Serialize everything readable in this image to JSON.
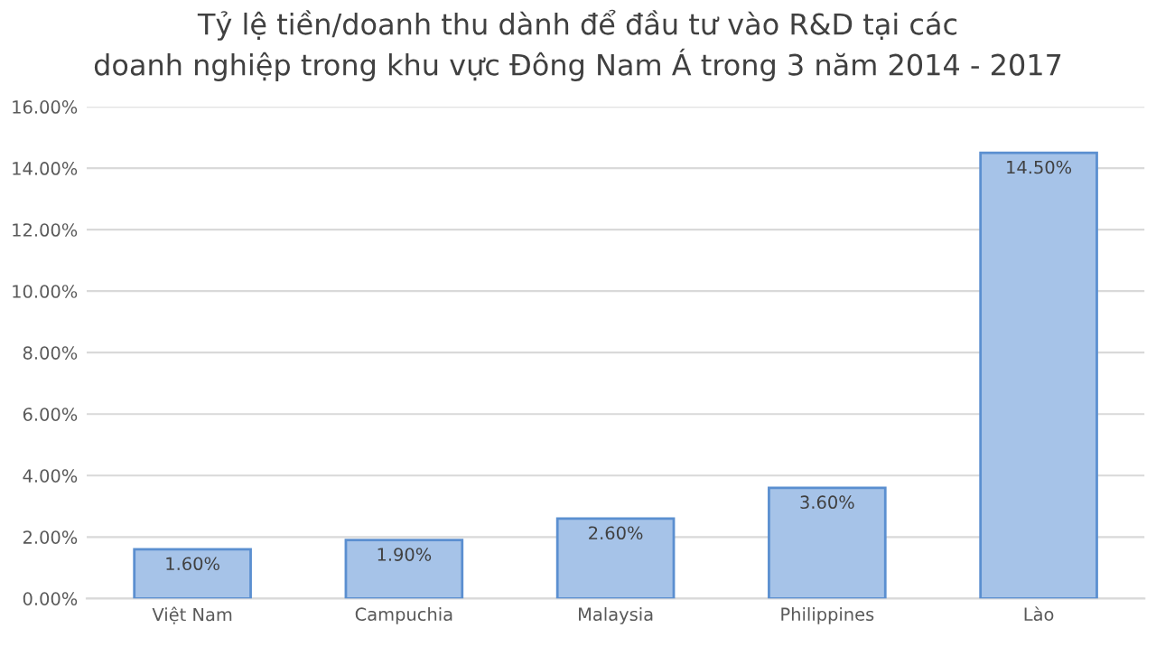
{
  "chart_data": {
    "type": "bar",
    "title": "Tỷ lệ tiền/doanh thu dành để đầu tư vào R&D tại các\ndoanh nghiệp trong khu vực Đông Nam Á trong 3 năm 2014 - 2017",
    "categories": [
      "Việt Nam",
      "Campuchia",
      "Malaysia",
      "Philippines",
      "Lào"
    ],
    "values": [
      1.6,
      1.9,
      2.6,
      3.6,
      14.5
    ],
    "value_labels": [
      "1.60%",
      "1.90%",
      "2.60%",
      "3.60%",
      "14.50%"
    ],
    "color": "#a6c3e8",
    "ylim": [
      0,
      16
    ],
    "yticks": [
      {
        "value": 0,
        "label": "0.00%"
      },
      {
        "value": 2,
        "label": "2.00%"
      },
      {
        "value": 4,
        "label": "4.00%"
      },
      {
        "value": 6,
        "label": "6.00%"
      },
      {
        "value": 8,
        "label": "8.00%"
      },
      {
        "value": 10,
        "label": "10.00%"
      },
      {
        "value": 12,
        "label": "12.00%"
      },
      {
        "value": 14,
        "label": "14.00%"
      },
      {
        "value": 16,
        "label": "16.00%"
      }
    ],
    "grid": "y",
    "legend": false
  }
}
